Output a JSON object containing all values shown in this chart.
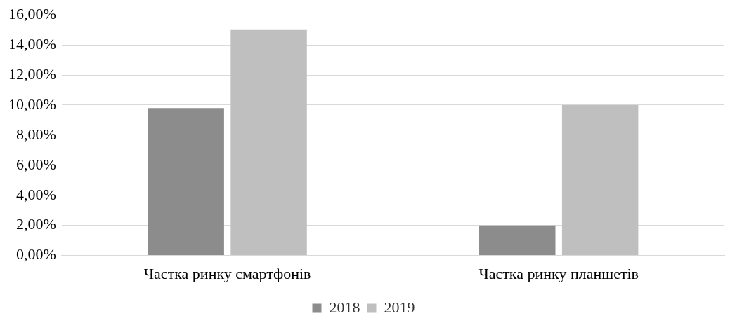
{
  "chart_data": {
    "type": "bar",
    "categories": [
      "Частка ринку смартфонів",
      "Частка ринку планшетів"
    ],
    "series": [
      {
        "name": "2018",
        "color": "#8c8c8c",
        "values": [
          9.8,
          2
        ]
      },
      {
        "name": "2019",
        "color": "#bfbfbf",
        "values": [
          15,
          10
        ]
      }
    ],
    "ylim": [
      0,
      16
    ],
    "yticks": [
      {
        "value": 0,
        "label": "0,00%"
      },
      {
        "value": 2,
        "label": "2,00%"
      },
      {
        "value": 4,
        "label": "4,00%"
      },
      {
        "value": 6,
        "label": "6,00%"
      },
      {
        "value": 8,
        "label": "8,00%"
      },
      {
        "value": 10,
        "label": "10,00%"
      },
      {
        "value": 12,
        "label": "12,00%"
      },
      {
        "value": 14,
        "label": "14,00%"
      },
      {
        "value": 16,
        "label": "16,00%"
      }
    ],
    "grid": "y",
    "legend": "bottom"
  }
}
